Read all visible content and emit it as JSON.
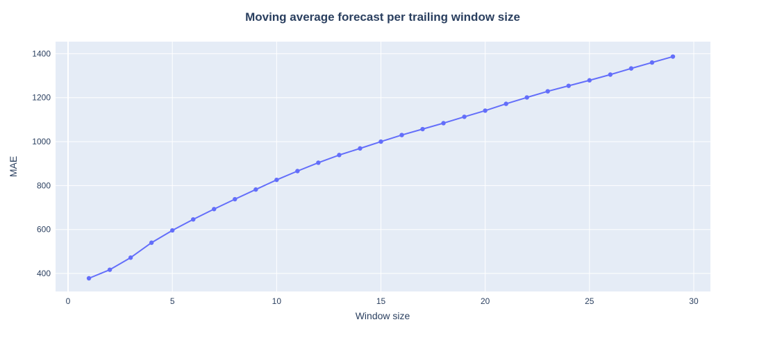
{
  "chart_data": {
    "type": "line",
    "title": "Moving average forecast per trailing window size",
    "xlabel": "Window size",
    "ylabel": "MAE",
    "xlim": [
      -0.6,
      30.8
    ],
    "ylim": [
      318,
      1455
    ],
    "xticks": [
      0,
      5,
      10,
      15,
      20,
      25,
      30
    ],
    "yticks": [
      400,
      600,
      800,
      1000,
      1200,
      1400
    ],
    "grid": true,
    "colors": {
      "line": "#636efa",
      "plot_bg": "#e5ecf6",
      "grid": "#ffffff",
      "text": "#2a3f5f"
    },
    "series": [
      {
        "x": [
          1,
          2,
          3,
          4,
          5,
          6,
          7,
          8,
          9,
          10,
          11,
          12,
          13,
          14,
          15,
          16,
          17,
          18,
          19,
          20,
          21,
          22,
          23,
          24,
          25,
          26,
          27,
          28,
          29
        ],
        "y": [
          378,
          417,
          472,
          540,
          596,
          646,
          693,
          738,
          782,
          826,
          866,
          904,
          939,
          969,
          1000,
          1030,
          1057,
          1084,
          1113,
          1141,
          1172,
          1201,
          1229,
          1254,
          1279,
          1305,
          1333,
          1360,
          1387
        ]
      }
    ]
  }
}
